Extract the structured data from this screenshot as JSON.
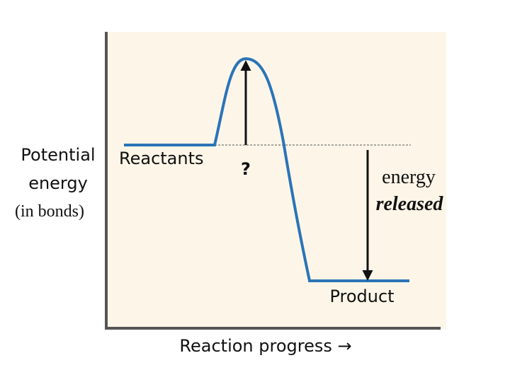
{
  "axis": {
    "y_label": [
      "Potential",
      "energy",
      "(in bonds)"
    ],
    "x_label": "Reaction progress →"
  },
  "labels": {
    "reactants": "Reactants",
    "question": "?",
    "energy": "energy",
    "released": "released",
    "product": "Product"
  }
}
